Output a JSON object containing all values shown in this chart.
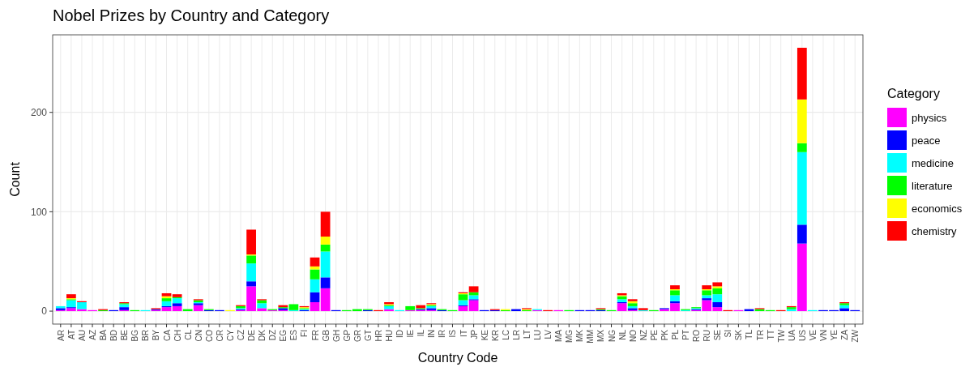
{
  "chart_data": {
    "type": "bar",
    "title": "Nobel Prizes by Country and Category",
    "xlabel": "Country Code",
    "ylabel": "Count",
    "legend_title": "Category",
    "legend": "right",
    "grid": true,
    "stacked": true,
    "categories": [
      "AR",
      "AT",
      "AU",
      "AZ",
      "BA",
      "BD",
      "BE",
      "BG",
      "BR",
      "BY",
      "CA",
      "CH",
      "CL",
      "CN",
      "CO",
      "CR",
      "CY",
      "CZ",
      "DE",
      "DK",
      "DZ",
      "EG",
      "ES",
      "FI",
      "FR",
      "GB",
      "GH",
      "GP",
      "GR",
      "GT",
      "HR",
      "HU",
      "ID",
      "IE",
      "IL",
      "IN",
      "IR",
      "IS",
      "IT",
      "JP",
      "KE",
      "KR",
      "LC",
      "LR",
      "LT",
      "LU",
      "LV",
      "MA",
      "MG",
      "MK",
      "MM",
      "MX",
      "NG",
      "NL",
      "NO",
      "NZ",
      "PE",
      "PK",
      "PL",
      "PT",
      "RO",
      "RU",
      "SE",
      "SI",
      "SK",
      "TL",
      "TR",
      "TT",
      "TW",
      "UA",
      "US",
      "VE",
      "VN",
      "YE",
      "ZA",
      "ZW"
    ],
    "ylim": [
      -13,
      278
    ],
    "yticks": [
      0,
      100,
      200
    ],
    "series": [
      {
        "name": "physics",
        "color": "#ff00ff",
        "values": [
          1,
          3,
          2,
          1,
          0,
          0,
          1,
          0,
          0,
          1,
          4,
          5,
          0,
          6,
          0,
          0,
          0,
          1,
          25,
          3,
          1,
          1,
          0,
          0,
          9,
          23,
          0,
          0,
          0,
          0,
          0,
          2,
          0,
          1,
          1,
          1,
          0,
          0,
          5,
          11,
          0,
          0,
          0,
          0,
          0,
          1,
          0,
          1,
          0,
          0,
          0,
          0,
          0,
          8,
          1,
          0,
          0,
          2,
          8,
          0,
          1,
          11,
          4,
          0,
          1,
          0,
          0,
          0,
          0,
          0,
          68,
          0,
          0,
          0,
          0,
          0
        ]
      },
      {
        "name": "peace",
        "color": "#0000ff",
        "values": [
          2,
          1,
          0,
          0,
          0,
          1,
          3,
          0,
          0,
          1,
          1,
          3,
          0,
          2,
          1,
          1,
          0,
          1,
          5,
          0,
          0,
          2,
          0,
          1,
          10,
          11,
          1,
          0,
          0,
          1,
          0,
          0,
          0,
          0,
          1,
          2,
          1,
          0,
          1,
          1,
          1,
          1,
          0,
          2,
          0,
          0,
          0,
          0,
          0,
          1,
          1,
          1,
          0,
          1,
          2,
          0,
          0,
          1,
          2,
          0,
          1,
          2,
          5,
          0,
          0,
          2,
          0,
          0,
          0,
          0,
          19,
          0,
          1,
          1,
          3,
          1
        ]
      },
      {
        "name": "medicine",
        "color": "#00ffff",
        "values": [
          2,
          7,
          7,
          0,
          0,
          0,
          3,
          0,
          1,
          0,
          5,
          5,
          0,
          1,
          0,
          0,
          0,
          1,
          18,
          5,
          0,
          0,
          1,
          1,
          13,
          26,
          0,
          0,
          0,
          0,
          0,
          3,
          1,
          0,
          0,
          2,
          0,
          0,
          5,
          4,
          0,
          0,
          0,
          0,
          0,
          1,
          0,
          0,
          0,
          0,
          0,
          0,
          0,
          3,
          2,
          1,
          0,
          0,
          6,
          1,
          1,
          3,
          8,
          0,
          0,
          0,
          0,
          0,
          0,
          2,
          73,
          1,
          0,
          0,
          3,
          0
        ]
      },
      {
        "name": "literature",
        "color": "#00ff00",
        "values": [
          0,
          1,
          0,
          0,
          1,
          0,
          1,
          1,
          0,
          0,
          3,
          1,
          2,
          2,
          1,
          0,
          0,
          2,
          8,
          3,
          1,
          1,
          6,
          1,
          10,
          7,
          0,
          1,
          2,
          1,
          0,
          1,
          0,
          4,
          1,
          1,
          1,
          1,
          6,
          3,
          0,
          0,
          1,
          0,
          1,
          0,
          0,
          0,
          1,
          0,
          0,
          1,
          1,
          3,
          3,
          0,
          1,
          0,
          5,
          1,
          1,
          5,
          6,
          0,
          0,
          0,
          2,
          1,
          0,
          2,
          9,
          0,
          0,
          0,
          2,
          0
        ]
      },
      {
        "name": "economics",
        "color": "#ffff00",
        "values": [
          0,
          1,
          0,
          0,
          0,
          0,
          0,
          0,
          0,
          0,
          2,
          0,
          0,
          0,
          0,
          0,
          1,
          0,
          1,
          0,
          0,
          0,
          0,
          1,
          3,
          8,
          0,
          0,
          0,
          0,
          0,
          1,
          0,
          0,
          0,
          1,
          0,
          0,
          1,
          0,
          0,
          0,
          1,
          0,
          1,
          0,
          0,
          0,
          0,
          0,
          0,
          0,
          0,
          1,
          2,
          0,
          0,
          0,
          1,
          0,
          0,
          1,
          2,
          0,
          0,
          0,
          0,
          0,
          0,
          0,
          44,
          0,
          0,
          0,
          0,
          0
        ]
      },
      {
        "name": "chemistry",
        "color": "#ff0000",
        "values": [
          0,
          4,
          1,
          0,
          1,
          0,
          1,
          0,
          0,
          1,
          3,
          3,
          0,
          1,
          0,
          0,
          0,
          1,
          25,
          1,
          0,
          2,
          0,
          1,
          9,
          25,
          0,
          0,
          0,
          0,
          1,
          2,
          0,
          0,
          3,
          1,
          0,
          0,
          1,
          6,
          0,
          1,
          0,
          0,
          1,
          0,
          1,
          0,
          0,
          0,
          0,
          1,
          0,
          2,
          2,
          2,
          0,
          0,
          4,
          0,
          0,
          4,
          4,
          1,
          0,
          0,
          1,
          0,
          1,
          1,
          52,
          0,
          0,
          0,
          1,
          0
        ]
      }
    ]
  }
}
